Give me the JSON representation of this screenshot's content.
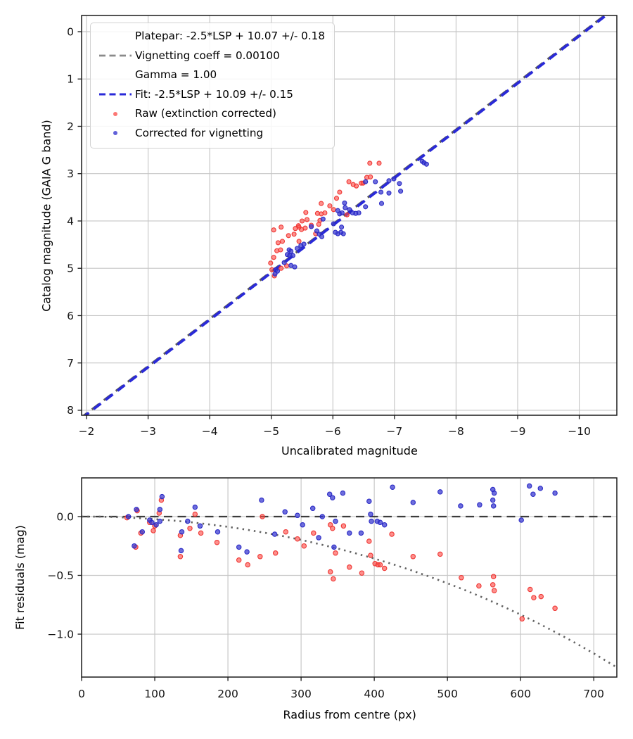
{
  "figure": {
    "description": "Photometric calibration fit with vignetting correction (two stacked plots)",
    "background_color": "#ffffff",
    "grid_color": "#c6c6c6",
    "spine_color": "#1a1a1a",
    "tick_label_color": "#141414"
  },
  "chart_data": [
    {
      "type": "scatter",
      "title": "",
      "xlabel": "Uncalibrated magnitude",
      "ylabel": "Catalog magnitude (GAIA G band)",
      "xlim": [
        -1.92,
        -10.61
      ],
      "ylim": [
        -0.342,
        8.105
      ],
      "x_axis_inverted": true,
      "y_axis_inverted": true,
      "grid": true,
      "xtick_values": [
        -2,
        -3,
        -4,
        -5,
        -6,
        -7,
        -8,
        -9,
        -10
      ],
      "xtick_labels": [
        "−2",
        "−3",
        "−4",
        "−5",
        "−6",
        "−7",
        "−8",
        "−9",
        "−10"
      ],
      "ytick_values": [
        0,
        1,
        2,
        3,
        4,
        5,
        6,
        7,
        8
      ],
      "ytick_labels": [
        "0",
        "1",
        "2",
        "3",
        "4",
        "5",
        "6",
        "7",
        "8"
      ],
      "legend": {
        "position": "upper left",
        "entries": [
          {
            "type": "line",
            "style": "dashed",
            "color": "#8a8a8a",
            "lines": [
              "Platepar: -2.5*LSP + 10.07 +/- 0.18",
              "Vignetting coeff = 0.00100",
              "Gamma = 1.00"
            ]
          },
          {
            "type": "line",
            "style": "dashed",
            "color": "#2a2ad8",
            "label": "Fit: -2.5*LSP + 10.09 +/- 0.15"
          },
          {
            "type": "marker",
            "color": "#fb4a46",
            "label": "Raw (extinction corrected)"
          },
          {
            "type": "marker",
            "color": "#3a3ad0",
            "label": "Corrected for vignetting"
          }
        ]
      },
      "lines": [
        {
          "name": "platepar-line",
          "label": "Platepar: -2.5*LSP + 10.07 +/- 0.18",
          "slope": 1.0,
          "intercept": 10.07,
          "color": "#5a5a5a",
          "width": 3.2,
          "dash": "13 8.5",
          "dashoffset": 3
        },
        {
          "name": "fit-line",
          "label": "Fit: -2.5*LSP + 10.09 +/- 0.15",
          "slope": 1.0,
          "intercept": 10.09,
          "color": "#2a2ad8",
          "width": 3.8,
          "dash": "13 8.5",
          "dashoffset": 0
        }
      ],
      "series": [
        {
          "name": "Raw (extinction corrected)",
          "marker": "circle",
          "fill": "#fb4a46",
          "edge": "#ee2f2c",
          "points": [
            [
              -6.6,
              2.78
            ],
            [
              -6.75,
              2.78
            ],
            [
              -6.55,
              3.08
            ],
            [
              -6.61,
              3.07
            ],
            [
              -6.26,
              3.17
            ],
            [
              -6.33,
              3.23
            ],
            [
              -6.38,
              3.26
            ],
            [
              -6.46,
              3.2
            ],
            [
              -6.49,
              3.2
            ],
            [
              -6.11,
              3.39
            ],
            [
              -6.06,
              3.52
            ],
            [
              -5.95,
              3.68
            ],
            [
              -6.01,
              3.76
            ],
            [
              -6.23,
              3.87
            ],
            [
              -5.81,
              3.63
            ],
            [
              -5.75,
              3.84
            ],
            [
              -5.81,
              3.85
            ],
            [
              -5.87,
              3.83
            ],
            [
              -5.56,
              3.82
            ],
            [
              -5.58,
              3.97
            ],
            [
              -5.5,
              4.0
            ],
            [
              -5.79,
              3.99
            ],
            [
              -5.44,
              4.1
            ],
            [
              -5.49,
              4.18
            ],
            [
              -5.72,
              4.27
            ],
            [
              -5.04,
              4.19
            ],
            [
              -5.16,
              4.13
            ],
            [
              -5.28,
              4.31
            ],
            [
              -5.37,
              4.28
            ],
            [
              -5.39,
              4.16
            ],
            [
              -5.45,
              4.13
            ],
            [
              -5.55,
              4.15
            ],
            [
              -5.65,
              4.09
            ],
            [
              -5.77,
              4.07
            ],
            [
              -5.18,
              4.43
            ],
            [
              -5.45,
              4.43
            ],
            [
              -5.11,
              4.46
            ],
            [
              -5.15,
              4.61
            ],
            [
              -5.09,
              4.63
            ],
            [
              -5.04,
              4.77
            ],
            [
              -5.25,
              4.95
            ],
            [
              -5.16,
              5.0
            ],
            [
              -4.99,
              4.89
            ],
            [
              -5.01,
              5.03
            ],
            [
              -5.05,
              5.16
            ]
          ]
        },
        {
          "name": "Corrected for vignetting",
          "marker": "circle",
          "fill": "#3a3ad0",
          "edge": "#2525c4",
          "points": [
            [
              -7.45,
              2.74
            ],
            [
              -7.48,
              2.77
            ],
            [
              -7.52,
              2.8
            ],
            [
              -6.91,
              3.15
            ],
            [
              -6.99,
              3.11
            ],
            [
              -7.08,
              3.21
            ],
            [
              -7.1,
              3.37
            ],
            [
              -6.91,
              3.41
            ],
            [
              -6.79,
              3.63
            ],
            [
              -6.69,
              3.17
            ],
            [
              -6.53,
              3.17
            ],
            [
              -6.78,
              3.39
            ],
            [
              -6.53,
              3.7
            ],
            [
              -6.42,
              3.83
            ],
            [
              -6.37,
              3.84
            ],
            [
              -6.32,
              3.83
            ],
            [
              -6.27,
              3.76
            ],
            [
              -6.19,
              3.62
            ],
            [
              -6.2,
              3.72
            ],
            [
              -6.11,
              3.85
            ],
            [
              -6.08,
              3.78
            ],
            [
              -6.15,
              3.83
            ],
            [
              -6.14,
              4.13
            ],
            [
              -6.17,
              4.27
            ],
            [
              -6.13,
              4.24
            ],
            [
              -6.08,
              4.27
            ],
            [
              -6.04,
              4.24
            ],
            [
              -6.01,
              4.06
            ],
            [
              -5.84,
              3.96
            ],
            [
              -5.74,
              4.21
            ],
            [
              -5.65,
              4.12
            ],
            [
              -5.78,
              4.28
            ],
            [
              -5.82,
              4.33
            ],
            [
              -5.48,
              4.52
            ],
            [
              -5.53,
              4.49
            ],
            [
              -5.42,
              4.58
            ],
            [
              -5.29,
              4.61
            ],
            [
              -5.32,
              4.64
            ],
            [
              -5.26,
              4.71
            ],
            [
              -5.3,
              4.73
            ],
            [
              -5.35,
              4.73
            ],
            [
              -5.21,
              4.88
            ],
            [
              -5.32,
              4.94
            ],
            [
              -5.38,
              4.97
            ],
            [
              -5.07,
              5.03
            ],
            [
              -5.06,
              5.12
            ],
            [
              -5.1,
              5.06
            ]
          ]
        }
      ]
    },
    {
      "type": "scatter",
      "title": "",
      "xlabel": "Radius from centre (px)",
      "ylabel": "Fit residuals (mag)",
      "xlim": [
        0,
        731.5
      ],
      "ylim": [
        0.329,
        -1.365
      ],
      "grid": true,
      "xtick_values": [
        0,
        100,
        200,
        300,
        400,
        500,
        600,
        700
      ],
      "xtick_labels": [
        "0",
        "100",
        "200",
        "300",
        "400",
        "500",
        "600",
        "700"
      ],
      "ytick_values": [
        0.0,
        -0.5,
        -1.0
      ],
      "ytick_labels": [
        "0.0",
        "−0.5",
        "−1.0"
      ],
      "zero_line": {
        "y": 0.0,
        "color": "#3c3c3c",
        "width": 2.2,
        "dash": "12 7.5"
      },
      "model_curve": {
        "name": "vignetting-model-curve",
        "formula": "10*log10(cos(0.001*r))",
        "vignetting_coeff": 0.001,
        "color": "#636363",
        "width": 2.6,
        "dash": "2.4 5.8",
        "points": [
          [
            0,
            0
          ],
          [
            25,
            -0.001
          ],
          [
            50,
            -0.005
          ],
          [
            75,
            -0.012
          ],
          [
            100,
            -0.022
          ],
          [
            125,
            -0.034
          ],
          [
            150,
            -0.049
          ],
          [
            175,
            -0.067
          ],
          [
            200,
            -0.087
          ],
          [
            225,
            -0.111
          ],
          [
            250,
            -0.137
          ],
          [
            275,
            -0.166
          ],
          [
            300,
            -0.198
          ],
          [
            325,
            -0.234
          ],
          [
            350,
            -0.272
          ],
          [
            375,
            -0.313
          ],
          [
            400,
            -0.357
          ],
          [
            425,
            -0.404
          ],
          [
            450,
            -0.455
          ],
          [
            475,
            -0.51
          ],
          [
            500,
            -0.567
          ],
          [
            525,
            -0.628
          ],
          [
            550,
            -0.693
          ],
          [
            575,
            -0.762
          ],
          [
            600,
            -0.834
          ],
          [
            625,
            -0.91
          ],
          [
            650,
            -0.991
          ],
          [
            675,
            -1.075
          ],
          [
            700,
            -1.164
          ],
          [
            725,
            -1.258
          ],
          [
            731,
            -1.282
          ]
        ]
      },
      "series": [
        {
          "name": "Raw (extinction corrected)",
          "marker": "circle",
          "fill": "#fb4a46",
          "edge": "#ee2f2c",
          "points": [
            [
              62,
              -0.01
            ],
            [
              76,
              0.05
            ],
            [
              74,
              -0.26
            ],
            [
              81,
              -0.14
            ],
            [
              93,
              -0.05
            ],
            [
              98,
              -0.12
            ],
            [
              100,
              -0.08
            ],
            [
              106,
              0.03
            ],
            [
              109,
              0.14
            ],
            [
              135,
              -0.16
            ],
            [
              135,
              -0.34
            ],
            [
              148,
              -0.1
            ],
            [
              155,
              0.02
            ],
            [
              163,
              -0.14
            ],
            [
              185,
              -0.22
            ],
            [
              215,
              -0.37
            ],
            [
              227,
              -0.41
            ],
            [
              244,
              -0.34
            ],
            [
              247,
              0.0
            ],
            [
              265,
              -0.31
            ],
            [
              279,
              -0.13
            ],
            [
              295,
              -0.19
            ],
            [
              304,
              -0.25
            ],
            [
              317,
              -0.14
            ],
            [
              340,
              -0.07
            ],
            [
              343,
              -0.1
            ],
            [
              340,
              -0.47
            ],
            [
              344,
              -0.53
            ],
            [
              347,
              -0.31
            ],
            [
              358,
              -0.08
            ],
            [
              366,
              -0.43
            ],
            [
              383,
              -0.48
            ],
            [
              393,
              -0.21
            ],
            [
              395,
              -0.33
            ],
            [
              401,
              -0.4
            ],
            [
              405,
              -0.41
            ],
            [
              408,
              -0.41
            ],
            [
              414,
              -0.44
            ],
            [
              424,
              -0.15
            ],
            [
              453,
              -0.34
            ],
            [
              490,
              -0.32
            ],
            [
              519,
              -0.52
            ],
            [
              543,
              -0.59
            ],
            [
              562,
              -0.58
            ],
            [
              563,
              -0.51
            ],
            [
              564,
              -0.63
            ],
            [
              602,
              -0.87
            ],
            [
              613,
              -0.62
            ],
            [
              618,
              -0.69
            ],
            [
              628,
              -0.68
            ],
            [
              647,
              -0.78
            ]
          ]
        },
        {
          "name": "Corrected for vignetting",
          "marker": "circle",
          "fill": "#3a3ad0",
          "edge": "#2525c4",
          "points": [
            [
              64,
              0.0
            ],
            [
              75,
              0.06
            ],
            [
              72,
              -0.25
            ],
            [
              83,
              -0.13
            ],
            [
              93,
              -0.03
            ],
            [
              96,
              -0.05
            ],
            [
              102,
              -0.07
            ],
            [
              107,
              0.06
            ],
            [
              110,
              0.17
            ],
            [
              107,
              -0.04
            ],
            [
              136,
              -0.29
            ],
            [
              137,
              -0.13
            ],
            [
              145,
              -0.04
            ],
            [
              155,
              0.08
            ],
            [
              162,
              -0.08
            ],
            [
              186,
              -0.13
            ],
            [
              215,
              -0.26
            ],
            [
              226,
              -0.3
            ],
            [
              246,
              0.14
            ],
            [
              264,
              -0.15
            ],
            [
              278,
              0.04
            ],
            [
              295,
              0.01
            ],
            [
              302,
              -0.07
            ],
            [
              316,
              0.07
            ],
            [
              324,
              -0.18
            ],
            [
              329,
              0.0
            ],
            [
              339,
              0.19
            ],
            [
              343,
              0.16
            ],
            [
              347,
              -0.04
            ],
            [
              345,
              -0.26
            ],
            [
              357,
              0.2
            ],
            [
              366,
              -0.14
            ],
            [
              382,
              -0.14
            ],
            [
              393,
              0.13
            ],
            [
              395,
              0.02
            ],
            [
              396,
              -0.04
            ],
            [
              404,
              -0.04
            ],
            [
              408,
              -0.05
            ],
            [
              414,
              -0.07
            ],
            [
              425,
              0.25
            ],
            [
              453,
              0.12
            ],
            [
              490,
              0.21
            ],
            [
              518,
              0.09
            ],
            [
              544,
              0.1
            ],
            [
              562,
              0.23
            ],
            [
              564,
              0.2
            ],
            [
              562,
              0.14
            ],
            [
              563,
              0.09
            ],
            [
              601,
              -0.03
            ],
            [
              612,
              0.26
            ],
            [
              617,
              0.19
            ],
            [
              627,
              0.24
            ],
            [
              647,
              0.2
            ]
          ]
        }
      ]
    }
  ]
}
